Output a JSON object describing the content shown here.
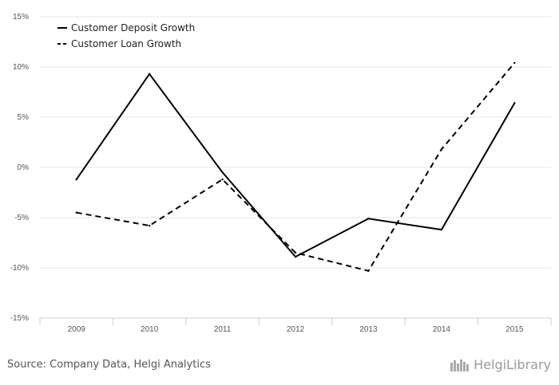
{
  "chart_data": {
    "type": "line",
    "categories": [
      "2009",
      "2010",
      "2011",
      "2012",
      "2013",
      "2014",
      "2015"
    ],
    "series": [
      {
        "name": "Customer Deposit Growth",
        "style": "solid",
        "values": [
          -1.2,
          9.3,
          -0.5,
          -8.9,
          -5.1,
          -6.2,
          6.4
        ]
      },
      {
        "name": "Customer Loan Growth",
        "style": "dashed",
        "values": [
          -4.5,
          -5.8,
          -1.2,
          -8.5,
          -10.3,
          1.8,
          10.4
        ]
      }
    ],
    "y_ticks": [
      "15%",
      "10%",
      "5%",
      "0%",
      "-5%",
      "-10%",
      "-15%"
    ],
    "ylim": [
      -15,
      15
    ],
    "grid": true,
    "legend_position": "top-left",
    "line_color": "#000000",
    "grid_color": "#e6e6e6",
    "axis_color": "#c0d0e0"
  },
  "footer": {
    "source": "Source: Company Data, Helgi Analytics",
    "logo_text": "HelgiLibrary"
  }
}
